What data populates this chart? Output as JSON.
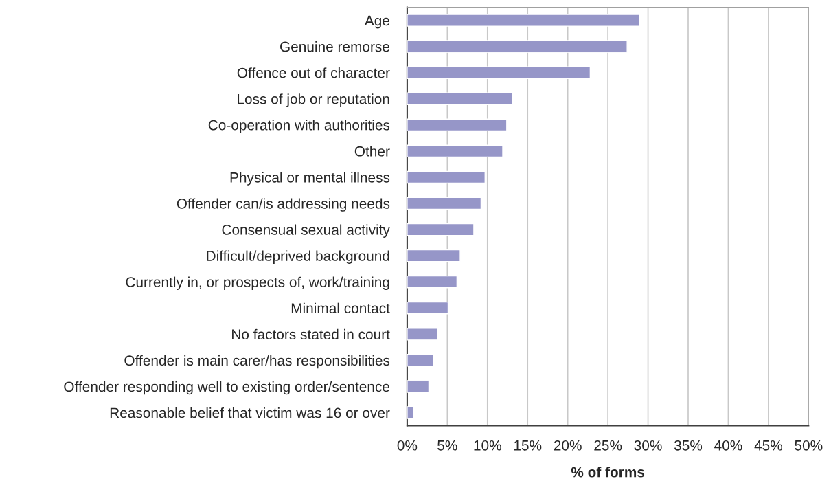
{
  "chart_data": {
    "type": "bar",
    "orientation": "horizontal",
    "xlabel": "% of forms",
    "categories": [
      "Age",
      "Genuine remorse",
      "Offence out of character",
      "Loss of job or reputation",
      "Co-operation with authorities",
      "Other",
      "Physical or mental illness",
      "Offender can/is addressing needs",
      "Consensual sexual activity",
      "Difficult/deprived background",
      "Currently in, or prospects of, work/training",
      "Minimal contact",
      "No factors stated in court",
      "Offender is main carer/has responsibilities",
      "Offender responding well to existing order/sentence",
      "Reasonable belief that victim was 16 or over"
    ],
    "values": [
      28.9,
      27.4,
      22.8,
      13.1,
      12.4,
      11.9,
      9.7,
      9.2,
      8.3,
      6.6,
      6.2,
      5.1,
      3.8,
      3.3,
      2.7,
      0.8
    ],
    "color": "#9696c8",
    "xlim": [
      0,
      50
    ],
    "xticks": [
      {
        "value": 0,
        "label": "0%"
      },
      {
        "value": 5,
        "label": "5%"
      },
      {
        "value": 10,
        "label": "10%"
      },
      {
        "value": 15,
        "label": "15%"
      },
      {
        "value": 20,
        "label": "20%"
      },
      {
        "value": 25,
        "label": "25%"
      },
      {
        "value": 30,
        "label": "30%"
      },
      {
        "value": 35,
        "label": "35%"
      },
      {
        "value": 40,
        "label": "40%"
      },
      {
        "value": 45,
        "label": "45%"
      },
      {
        "value": 50,
        "label": "50%"
      }
    ],
    "grid": "x"
  }
}
